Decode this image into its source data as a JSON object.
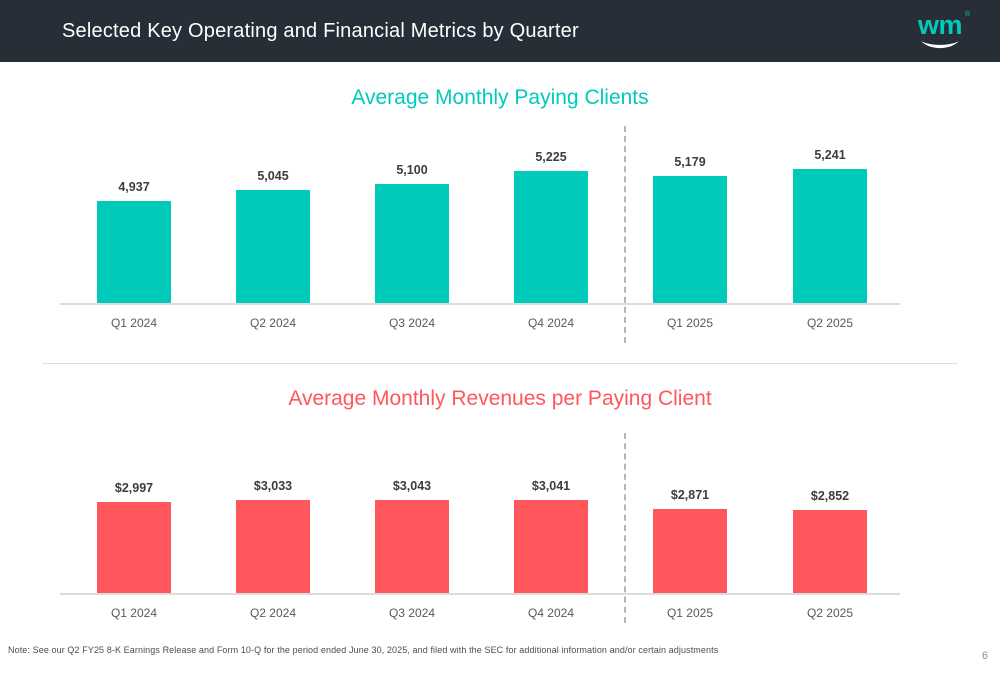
{
  "header": {
    "title": "Selected Key Operating and Financial Metrics by Quarter",
    "logo": {
      "text": "wm",
      "registered_mark": "®"
    }
  },
  "theme": {
    "header_bg": "#272E37",
    "teal": "#00CBBB",
    "coral": "#FF575C",
    "axis_line": "#DCDCDC",
    "label_gray": "#595959",
    "value_label": "#3D3D3D"
  },
  "chart_data": [
    {
      "type": "bar",
      "title": "Average Monthly Paying Clients",
      "title_color": "#00CBBB",
      "bar_color": "#00CBBB",
      "categories": [
        "Q1 2024",
        "Q2 2024",
        "Q3 2024",
        "Q4 2024",
        "Q1 2025",
        "Q2 2025"
      ],
      "values": [
        4937,
        5045,
        5100,
        5225,
        5179,
        5241
      ],
      "value_labels": [
        "4,937",
        "5,045",
        "5,100",
        "5,225",
        "5,179",
        "5,241"
      ],
      "ylim": [
        3950,
        5400
      ],
      "xlabel": "",
      "ylabel": "",
      "grid": false,
      "legend": "none",
      "period_divider_after_index": 3
    },
    {
      "type": "bar",
      "title": "Average Monthly Revenues per Paying Client",
      "title_color": "#FF575C",
      "bar_color": "#FF575C",
      "categories": [
        "Q1 2024",
        "Q2 2024",
        "Q3 2024",
        "Q4 2024",
        "Q1 2025",
        "Q2 2025"
      ],
      "values": [
        2997,
        3033,
        3043,
        3041,
        2871,
        2852
      ],
      "value_labels": [
        "$2,997",
        "$3,033",
        "$3,043",
        "$3,041",
        "$2,871",
        "$2,852"
      ],
      "ylim": [
        1200,
        3300
      ],
      "xlabel": "",
      "ylabel": "",
      "grid": false,
      "legend": "none",
      "period_divider_after_index": 3
    }
  ],
  "footer": {
    "note": "Note: See our Q2 FY25 8-K Earnings Release and Form 10-Q for the period ended June 30, 2025, and filed with the SEC for additional information and/or certain adjustments",
    "page_number": "6"
  }
}
